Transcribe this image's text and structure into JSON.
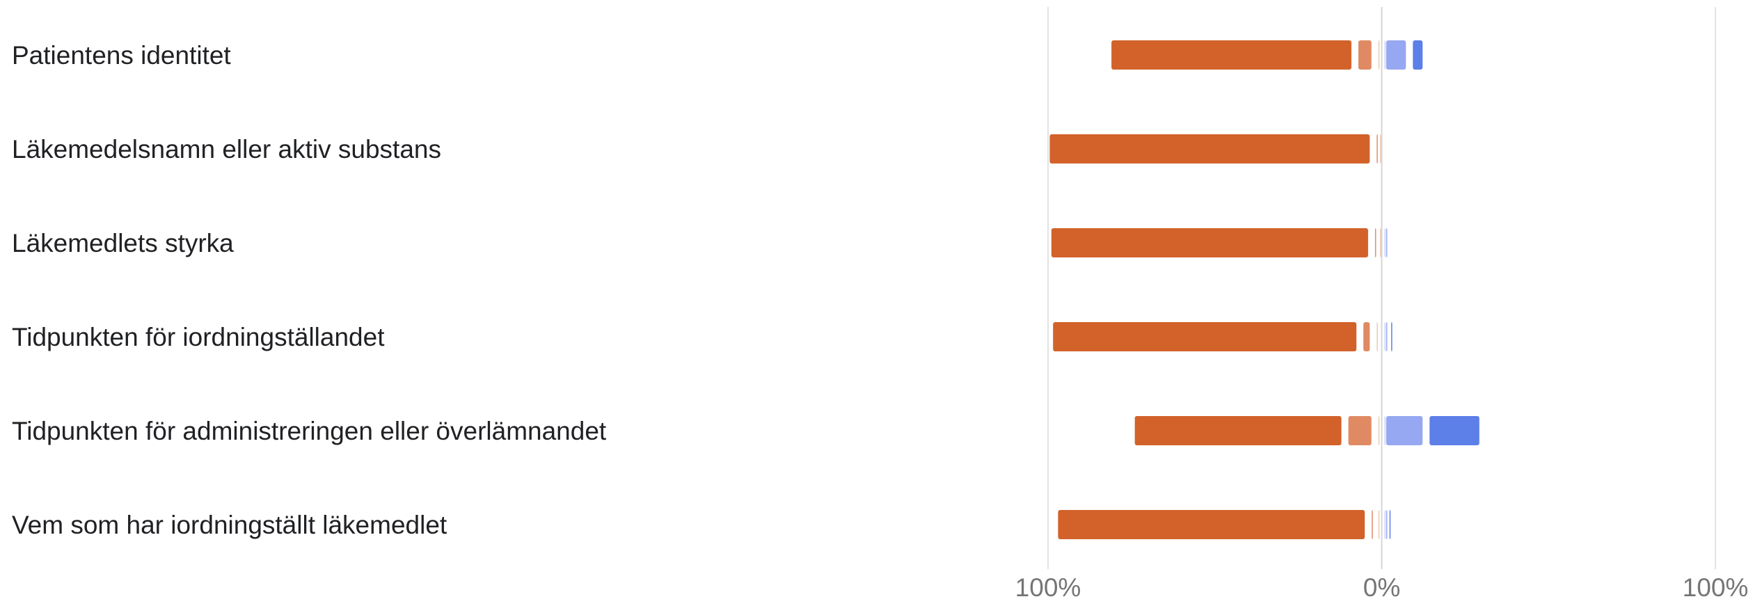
{
  "chart_data": {
    "type": "bar",
    "orientation": "horizontal",
    "stacked": "diverging",
    "categories": [
      "Patientens identitet",
      "Läkemedelsnamn eller aktiv substans",
      "Läkemedlets styrka",
      "Tidpunkten för iordningställandet",
      "Tidpunkten för administreringen eller överlämnandet",
      "Vem som har iordningställt läkemedlet"
    ],
    "series": [
      {
        "side": "negative",
        "color": "#d2622a",
        "values": [
          74,
          98,
          97,
          93,
          64,
          94
        ]
      },
      {
        "side": "negative",
        "color": "#e08a63",
        "values": [
          6,
          1,
          1.5,
          4,
          9,
          2
        ]
      },
      {
        "side": "negative",
        "color": "#eec8b3",
        "values": [
          1,
          0.5,
          0.5,
          1.5,
          1,
          1
        ]
      },
      {
        "side": "positive",
        "color": "#c9d1f5",
        "values": [
          0.5,
          0,
          0.5,
          0.5,
          0.5,
          0.5
        ]
      },
      {
        "side": "positive",
        "color": "#97a8f2",
        "values": [
          8,
          0,
          0.5,
          1.5,
          13,
          1
        ]
      },
      {
        "side": "positive",
        "color": "#5c7fe8",
        "values": [
          5,
          0,
          0,
          1,
          17,
          1
        ]
      }
    ],
    "x_tick_labels": [
      "100%",
      "0%",
      "100%"
    ],
    "xlim": [
      -100,
      100
    ],
    "grid": true,
    "legend": "none"
  }
}
